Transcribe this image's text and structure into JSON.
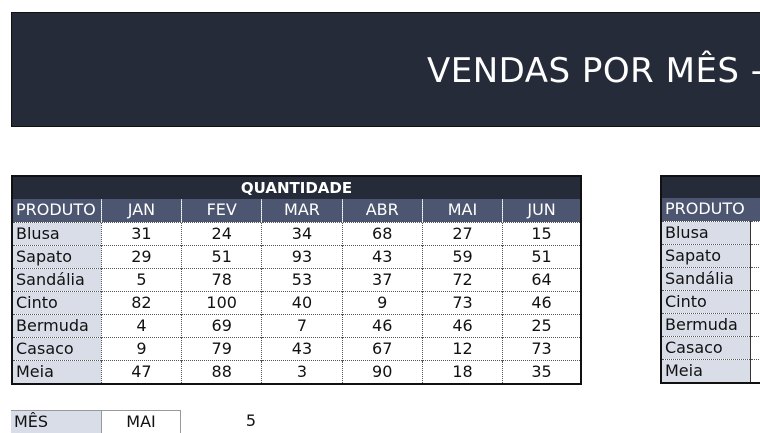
{
  "banner": {
    "title": "VENDAS POR MÊS -"
  },
  "quantidade": {
    "title": "QUANTIDADE",
    "product_header": "PRODUTO",
    "months": [
      "JAN",
      "FEV",
      "MAR",
      "ABR",
      "MAI",
      "JUN"
    ],
    "rows": [
      {
        "product": "Blusa",
        "values": [
          31,
          24,
          34,
          68,
          27,
          15
        ]
      },
      {
        "product": "Sapato",
        "values": [
          29,
          51,
          93,
          43,
          59,
          51
        ]
      },
      {
        "product": "Sandália",
        "values": [
          5,
          78,
          53,
          37,
          72,
          64
        ]
      },
      {
        "product": "Cinto",
        "values": [
          82,
          100,
          40,
          9,
          73,
          46
        ]
      },
      {
        "product": "Bermuda",
        "values": [
          4,
          69,
          7,
          46,
          46,
          25
        ]
      },
      {
        "product": "Casaco",
        "values": [
          9,
          79,
          43,
          67,
          12,
          73
        ]
      },
      {
        "product": "Meia",
        "values": [
          47,
          88,
          3,
          90,
          18,
          35
        ]
      }
    ]
  },
  "second_table": {
    "product_header": "PRODUTO",
    "products": [
      "Blusa",
      "Sapato",
      "Sandália",
      "Cinto",
      "Bermuda",
      "Casaco",
      "Meia"
    ]
  },
  "selector": {
    "label": "MÊS",
    "value": "MAI",
    "index": "5"
  }
}
